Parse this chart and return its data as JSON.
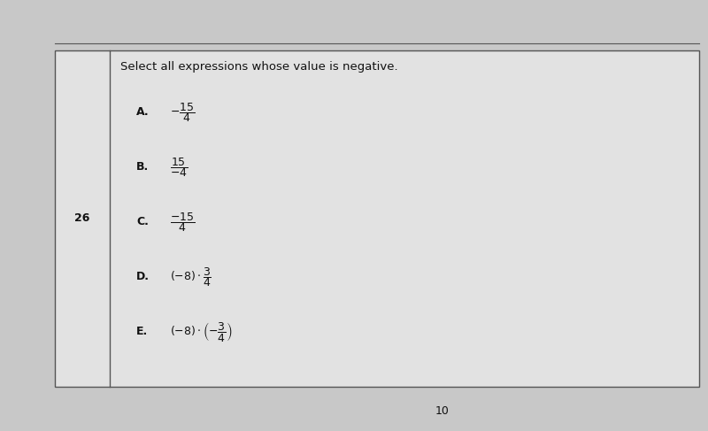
{
  "question_number": "26",
  "title": "Select all expressions whose value is negative.",
  "options": [
    {
      "label": "A",
      "expr": "$-\\dfrac{15}{4}$"
    },
    {
      "label": "B",
      "expr": "$\\dfrac{15}{-4}$"
    },
    {
      "label": "C",
      "expr": "$\\dfrac{-15}{4}$"
    },
    {
      "label": "D",
      "expr": "$(-8) \\cdot \\dfrac{3}{4}$"
    },
    {
      "label": "E",
      "expr": "$(-8) \\cdot \\left(-\\dfrac{3}{4}\\right)$"
    }
  ],
  "page_number": "10",
  "bg_color": "#c8c8c8",
  "table_bg": "#e2e2e2",
  "left_col_bg": "#e2e2e2",
  "border_color": "#555555",
  "text_color": "#111111",
  "title_fontsize": 9.5,
  "option_fontsize": 9,
  "label_fontsize": 9,
  "number_fontsize": 9
}
